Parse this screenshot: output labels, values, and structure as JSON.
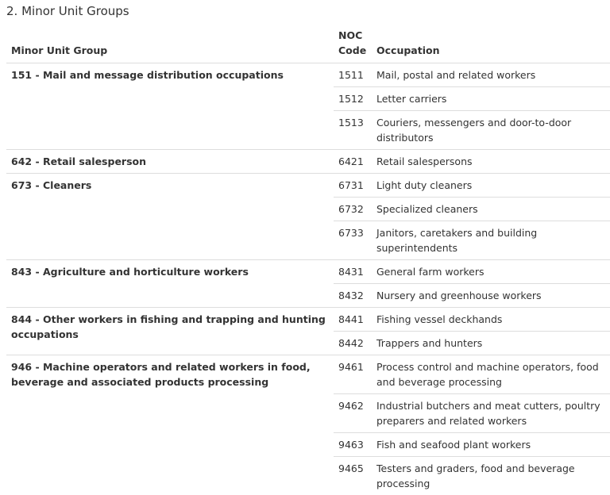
{
  "title": "2. Minor Unit Groups",
  "columns": {
    "group": "Minor Unit Group",
    "code_line1": "NOC",
    "code_line2": "Code",
    "occupation": "Occupation"
  },
  "groups": [
    {
      "name": "151 - Mail and message distribution occupations",
      "rows": [
        {
          "code": "1511",
          "occupation": "Mail, postal and related workers"
        },
        {
          "code": "1512",
          "occupation": "Letter carriers"
        },
        {
          "code": "1513",
          "occupation": "Couriers, messengers and door-to-door distributors"
        }
      ]
    },
    {
      "name": "642 - Retail salesperson",
      "rows": [
        {
          "code": "6421",
          "occupation": "Retail salespersons"
        }
      ]
    },
    {
      "name": "673 -  Cleaners",
      "rows": [
        {
          "code": "6731",
          "occupation": "Light duty cleaners"
        },
        {
          "code": "6732",
          "occupation": "Specialized cleaners"
        },
        {
          "code": "6733",
          "occupation": "Janitors, caretakers and building superintendents"
        }
      ]
    },
    {
      "name": "843 - Agriculture and horticulture workers",
      "rows": [
        {
          "code": "8431",
          "occupation": "General farm workers"
        },
        {
          "code": "8432",
          "occupation": "Nursery and greenhouse workers"
        }
      ]
    },
    {
      "name": "844 -  Other workers in fishing and trapping and hunting occupations",
      "rows": [
        {
          "code": "8441",
          "occupation": "Fishing vessel deckhands"
        },
        {
          "code": "8442",
          "occupation": "Trappers and hunters"
        }
      ]
    },
    {
      "name": "946 - Machine operators and related workers in food, beverage and associated products processing",
      "rows": [
        {
          "code": "9461",
          "occupation": "Process control and machine operators, food and beverage processing"
        },
        {
          "code": "9462",
          "occupation": "Industrial butchers and meat cutters, poultry preparers and related workers"
        },
        {
          "code": "9463",
          "occupation": "Fish and seafood plant workers"
        },
        {
          "code": "9465",
          "occupation": "Testers and graders, food and beverage processing"
        }
      ]
    }
  ]
}
